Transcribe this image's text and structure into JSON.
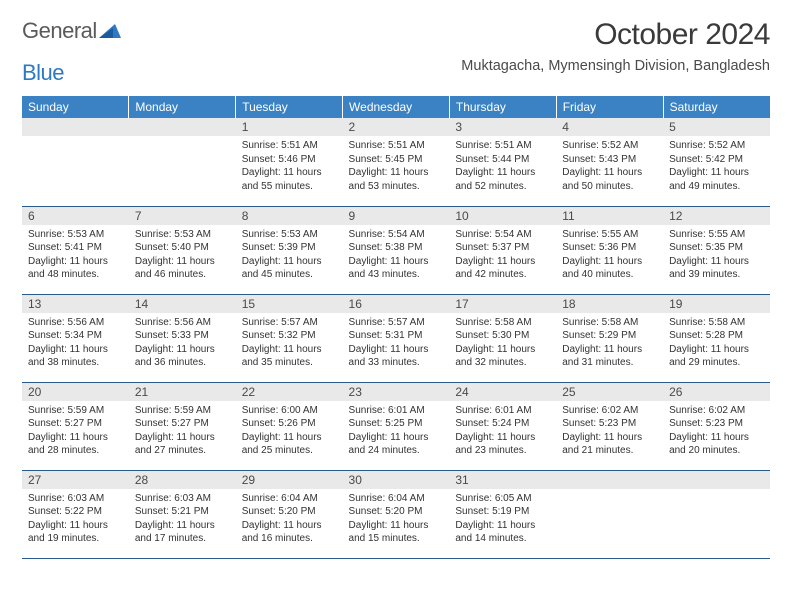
{
  "logo": {
    "word1": "General",
    "word2": "Blue",
    "word1_color": "#5a5a5a",
    "word2_color": "#2f78c3",
    "icon_color": "#2f78c3"
  },
  "header": {
    "month_title": "October 2024",
    "location": "Muktagacha, Mymensingh Division, Bangladesh"
  },
  "calendar": {
    "type": "table",
    "header_bg": "#3b82c4",
    "header_text_color": "#ffffff",
    "daynum_bg": "#e9e9e9",
    "cell_border_color": "#2a5a8a",
    "body_text_color": "#333333",
    "body_fontsize": 10,
    "header_fontsize": 12,
    "columns": [
      "Sunday",
      "Monday",
      "Tuesday",
      "Wednesday",
      "Thursday",
      "Friday",
      "Saturday"
    ],
    "weeks": [
      [
        null,
        null,
        {
          "day": "1",
          "sunrise": "Sunrise: 5:51 AM",
          "sunset": "Sunset: 5:46 PM",
          "daylight1": "Daylight: 11 hours",
          "daylight2": "and 55 minutes."
        },
        {
          "day": "2",
          "sunrise": "Sunrise: 5:51 AM",
          "sunset": "Sunset: 5:45 PM",
          "daylight1": "Daylight: 11 hours",
          "daylight2": "and 53 minutes."
        },
        {
          "day": "3",
          "sunrise": "Sunrise: 5:51 AM",
          "sunset": "Sunset: 5:44 PM",
          "daylight1": "Daylight: 11 hours",
          "daylight2": "and 52 minutes."
        },
        {
          "day": "4",
          "sunrise": "Sunrise: 5:52 AM",
          "sunset": "Sunset: 5:43 PM",
          "daylight1": "Daylight: 11 hours",
          "daylight2": "and 50 minutes."
        },
        {
          "day": "5",
          "sunrise": "Sunrise: 5:52 AM",
          "sunset": "Sunset: 5:42 PM",
          "daylight1": "Daylight: 11 hours",
          "daylight2": "and 49 minutes."
        }
      ],
      [
        {
          "day": "6",
          "sunrise": "Sunrise: 5:53 AM",
          "sunset": "Sunset: 5:41 PM",
          "daylight1": "Daylight: 11 hours",
          "daylight2": "and 48 minutes."
        },
        {
          "day": "7",
          "sunrise": "Sunrise: 5:53 AM",
          "sunset": "Sunset: 5:40 PM",
          "daylight1": "Daylight: 11 hours",
          "daylight2": "and 46 minutes."
        },
        {
          "day": "8",
          "sunrise": "Sunrise: 5:53 AM",
          "sunset": "Sunset: 5:39 PM",
          "daylight1": "Daylight: 11 hours",
          "daylight2": "and 45 minutes."
        },
        {
          "day": "9",
          "sunrise": "Sunrise: 5:54 AM",
          "sunset": "Sunset: 5:38 PM",
          "daylight1": "Daylight: 11 hours",
          "daylight2": "and 43 minutes."
        },
        {
          "day": "10",
          "sunrise": "Sunrise: 5:54 AM",
          "sunset": "Sunset: 5:37 PM",
          "daylight1": "Daylight: 11 hours",
          "daylight2": "and 42 minutes."
        },
        {
          "day": "11",
          "sunrise": "Sunrise: 5:55 AM",
          "sunset": "Sunset: 5:36 PM",
          "daylight1": "Daylight: 11 hours",
          "daylight2": "and 40 minutes."
        },
        {
          "day": "12",
          "sunrise": "Sunrise: 5:55 AM",
          "sunset": "Sunset: 5:35 PM",
          "daylight1": "Daylight: 11 hours",
          "daylight2": "and 39 minutes."
        }
      ],
      [
        {
          "day": "13",
          "sunrise": "Sunrise: 5:56 AM",
          "sunset": "Sunset: 5:34 PM",
          "daylight1": "Daylight: 11 hours",
          "daylight2": "and 38 minutes."
        },
        {
          "day": "14",
          "sunrise": "Sunrise: 5:56 AM",
          "sunset": "Sunset: 5:33 PM",
          "daylight1": "Daylight: 11 hours",
          "daylight2": "and 36 minutes."
        },
        {
          "day": "15",
          "sunrise": "Sunrise: 5:57 AM",
          "sunset": "Sunset: 5:32 PM",
          "daylight1": "Daylight: 11 hours",
          "daylight2": "and 35 minutes."
        },
        {
          "day": "16",
          "sunrise": "Sunrise: 5:57 AM",
          "sunset": "Sunset: 5:31 PM",
          "daylight1": "Daylight: 11 hours",
          "daylight2": "and 33 minutes."
        },
        {
          "day": "17",
          "sunrise": "Sunrise: 5:58 AM",
          "sunset": "Sunset: 5:30 PM",
          "daylight1": "Daylight: 11 hours",
          "daylight2": "and 32 minutes."
        },
        {
          "day": "18",
          "sunrise": "Sunrise: 5:58 AM",
          "sunset": "Sunset: 5:29 PM",
          "daylight1": "Daylight: 11 hours",
          "daylight2": "and 31 minutes."
        },
        {
          "day": "19",
          "sunrise": "Sunrise: 5:58 AM",
          "sunset": "Sunset: 5:28 PM",
          "daylight1": "Daylight: 11 hours",
          "daylight2": "and 29 minutes."
        }
      ],
      [
        {
          "day": "20",
          "sunrise": "Sunrise: 5:59 AM",
          "sunset": "Sunset: 5:27 PM",
          "daylight1": "Daylight: 11 hours",
          "daylight2": "and 28 minutes."
        },
        {
          "day": "21",
          "sunrise": "Sunrise: 5:59 AM",
          "sunset": "Sunset: 5:27 PM",
          "daylight1": "Daylight: 11 hours",
          "daylight2": "and 27 minutes."
        },
        {
          "day": "22",
          "sunrise": "Sunrise: 6:00 AM",
          "sunset": "Sunset: 5:26 PM",
          "daylight1": "Daylight: 11 hours",
          "daylight2": "and 25 minutes."
        },
        {
          "day": "23",
          "sunrise": "Sunrise: 6:01 AM",
          "sunset": "Sunset: 5:25 PM",
          "daylight1": "Daylight: 11 hours",
          "daylight2": "and 24 minutes."
        },
        {
          "day": "24",
          "sunrise": "Sunrise: 6:01 AM",
          "sunset": "Sunset: 5:24 PM",
          "daylight1": "Daylight: 11 hours",
          "daylight2": "and 23 minutes."
        },
        {
          "day": "25",
          "sunrise": "Sunrise: 6:02 AM",
          "sunset": "Sunset: 5:23 PM",
          "daylight1": "Daylight: 11 hours",
          "daylight2": "and 21 minutes."
        },
        {
          "day": "26",
          "sunrise": "Sunrise: 6:02 AM",
          "sunset": "Sunset: 5:23 PM",
          "daylight1": "Daylight: 11 hours",
          "daylight2": "and 20 minutes."
        }
      ],
      [
        {
          "day": "27",
          "sunrise": "Sunrise: 6:03 AM",
          "sunset": "Sunset: 5:22 PM",
          "daylight1": "Daylight: 11 hours",
          "daylight2": "and 19 minutes."
        },
        {
          "day": "28",
          "sunrise": "Sunrise: 6:03 AM",
          "sunset": "Sunset: 5:21 PM",
          "daylight1": "Daylight: 11 hours",
          "daylight2": "and 17 minutes."
        },
        {
          "day": "29",
          "sunrise": "Sunrise: 6:04 AM",
          "sunset": "Sunset: 5:20 PM",
          "daylight1": "Daylight: 11 hours",
          "daylight2": "and 16 minutes."
        },
        {
          "day": "30",
          "sunrise": "Sunrise: 6:04 AM",
          "sunset": "Sunset: 5:20 PM",
          "daylight1": "Daylight: 11 hours",
          "daylight2": "and 15 minutes."
        },
        {
          "day": "31",
          "sunrise": "Sunrise: 6:05 AM",
          "sunset": "Sunset: 5:19 PM",
          "daylight1": "Daylight: 11 hours",
          "daylight2": "and 14 minutes."
        },
        null,
        null
      ]
    ]
  }
}
